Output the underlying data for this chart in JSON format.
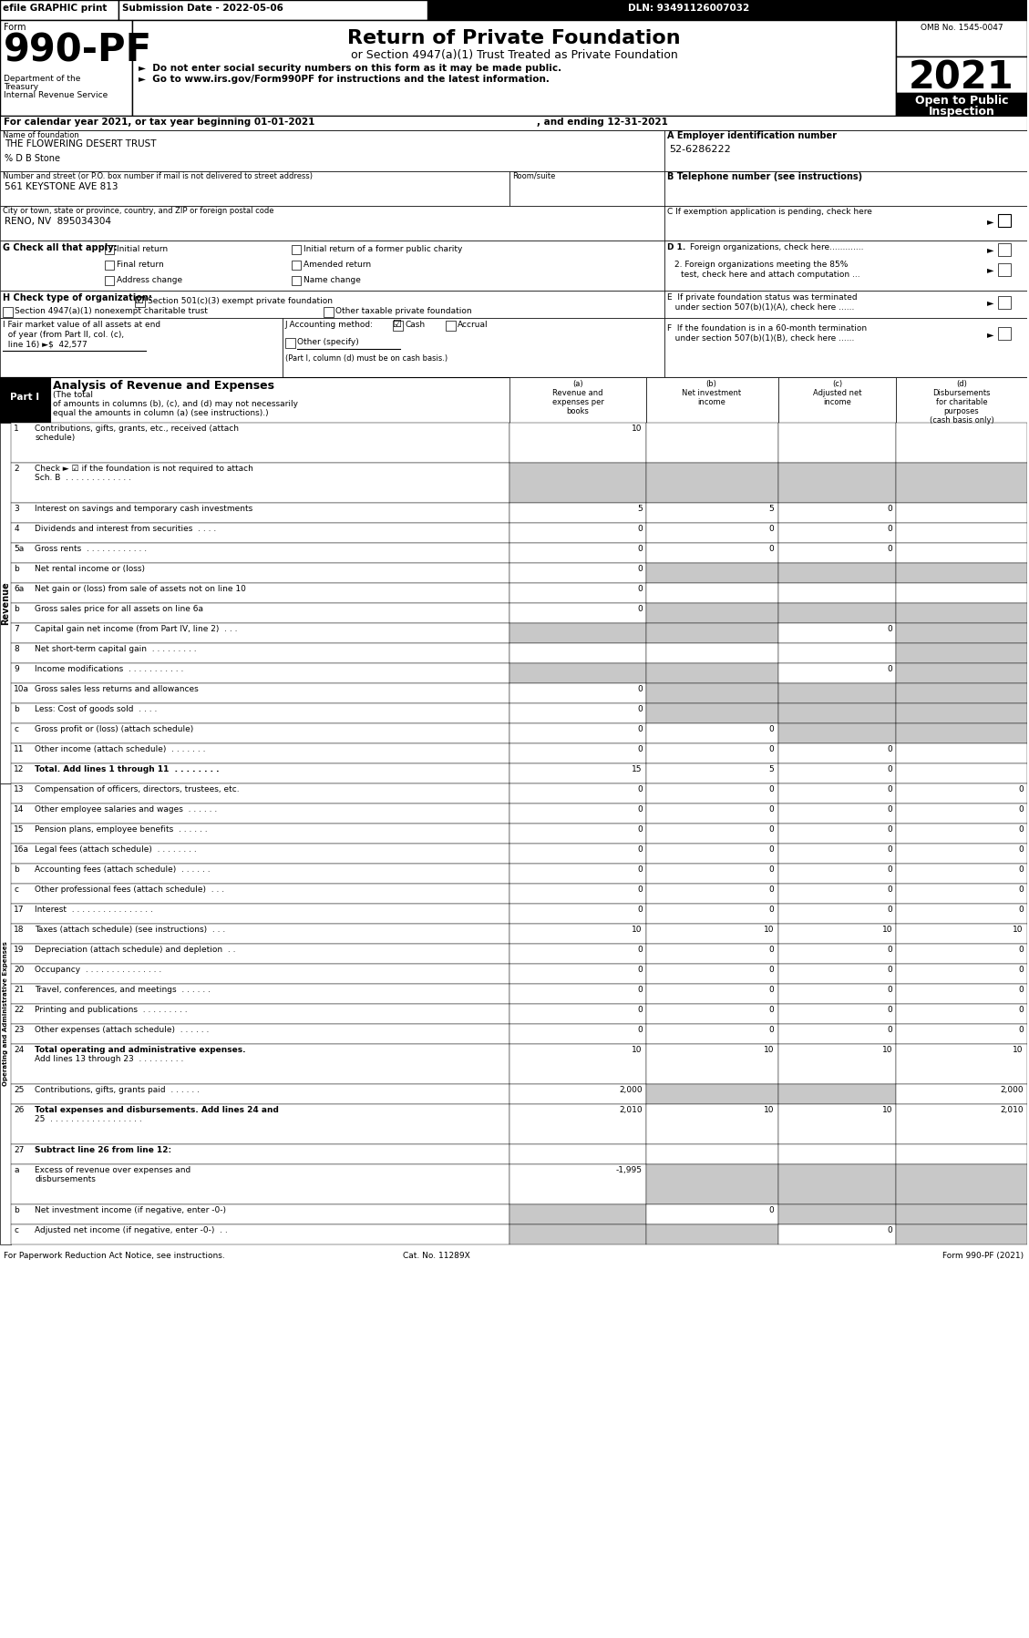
{
  "efile_bar": "efile GRAPHIC print",
  "submission_date": "Submission Date - 2022-05-06",
  "dln": "DLN: 93491126007032",
  "form_label": "Form",
  "form_number": "990-PF",
  "dept1": "Department of the",
  "dept2": "Treasury",
  "dept3": "Internal Revenue Service",
  "title_main": "Return of Private Foundation",
  "title_sub": "or Section 4947(a)(1) Trust Treated as Private Foundation",
  "bullet1": "►  Do not enter social security numbers on this form as it may be made public.",
  "bullet2": "►  Go to www.irs.gov/Form990PF for instructions and the latest information.",
  "omb": "OMB No. 1545-0047",
  "year": "2021",
  "open_public": "Open to Public",
  "inspection": "Inspection",
  "cal_year_line": "For calendar year 2021, or tax year beginning 01-01-2021",
  "and_ending": ", and ending 12-31-2021",
  "name_label": "Name of foundation",
  "name_value": "THE FLOWERING DESERT TRUST",
  "care_of": "% D B Stone",
  "ein_label": "A Employer identification number",
  "ein_value": "52-6286222",
  "address_label": "Number and street (or P.O. box number if mail is not delivered to street address)",
  "room_label": "Room/suite",
  "address_value": "561 KEYSTONE AVE 813",
  "phone_label": "B Telephone number (see instructions)",
  "city_label": "City or town, state or province, country, and ZIP or foreign postal code",
  "city_value": "RENO, NV  895034304",
  "g_label": "G Check all that apply:",
  "g_checks": [
    "Initial return",
    "Initial return of a former public charity",
    "Final return",
    "Amended return",
    "Address change",
    "Name change"
  ],
  "h_label": "H Check type of organization:",
  "h1": "Section 501(c)(3) exempt private foundation",
  "h2": "Section 4947(a)(1) nonexempt charitable trust",
  "h3": "Other taxable private foundation",
  "j_cash": "Cash",
  "j_accrual": "Accrual",
  "j_other": "Other (specify)",
  "j_note": "(Part I, column (d) must be on cash basis.)",
  "part1_label": "Part I",
  "part1_title": "Analysis of Revenue and Expenses",
  "rows": [
    {
      "num": "1",
      "label": "Contributions, gifts, grants, etc., received (attach\nschedule)",
      "a": "10",
      "b": "",
      "c": "",
      "d": "",
      "sa": false,
      "sb": false,
      "sc": false,
      "sd": false
    },
    {
      "num": "2",
      "label": "Check ► ☑ if the foundation is not required to attach\nSch. B  . . . . . . . . . . . . .",
      "a": "",
      "b": "",
      "c": "",
      "d": "",
      "sa": true,
      "sb": true,
      "sc": true,
      "sd": true
    },
    {
      "num": "3",
      "label": "Interest on savings and temporary cash investments",
      "a": "5",
      "b": "5",
      "c": "0",
      "d": "",
      "sa": false,
      "sb": false,
      "sc": false,
      "sd": false
    },
    {
      "num": "4",
      "label": "Dividends and interest from securities  . . . .",
      "a": "0",
      "b": "0",
      "c": "0",
      "d": "",
      "sa": false,
      "sb": false,
      "sc": false,
      "sd": false
    },
    {
      "num": "5a",
      "label": "Gross rents  . . . . . . . . . . . .",
      "a": "0",
      "b": "0",
      "c": "0",
      "d": "",
      "sa": false,
      "sb": false,
      "sc": false,
      "sd": false
    },
    {
      "num": "b",
      "label": "Net rental income or (loss)",
      "a": "0",
      "b": "",
      "c": "",
      "d": "",
      "sa": false,
      "sb": true,
      "sc": true,
      "sd": true
    },
    {
      "num": "6a",
      "label": "Net gain or (loss) from sale of assets not on line 10",
      "a": "0",
      "b": "",
      "c": "",
      "d": "",
      "sa": false,
      "sb": false,
      "sc": false,
      "sd": false
    },
    {
      "num": "b",
      "label": "Gross sales price for all assets on line 6a",
      "a": "0",
      "b": "",
      "c": "",
      "d": "",
      "sa": false,
      "sb": true,
      "sc": true,
      "sd": true
    },
    {
      "num": "7",
      "label": "Capital gain net income (from Part IV, line 2)  . . .",
      "a": "",
      "b": "",
      "c": "0",
      "d": "",
      "sa": true,
      "sb": true,
      "sc": false,
      "sd": true
    },
    {
      "num": "8",
      "label": "Net short-term capital gain  . . . . . . . . .",
      "a": "",
      "b": "",
      "c": "",
      "d": "",
      "sa": false,
      "sb": false,
      "sc": false,
      "sd": true
    },
    {
      "num": "9",
      "label": "Income modifications  . . . . . . . . . . .",
      "a": "",
      "b": "",
      "c": "0",
      "d": "",
      "sa": true,
      "sb": true,
      "sc": false,
      "sd": true
    },
    {
      "num": "10a",
      "label": "Gross sales less returns and allowances",
      "a": "0",
      "b": "",
      "c": "",
      "d": "",
      "sa": false,
      "sb": true,
      "sc": true,
      "sd": true
    },
    {
      "num": "b",
      "label": "Less: Cost of goods sold  . . . .",
      "a": "0",
      "b": "",
      "c": "",
      "d": "",
      "sa": false,
      "sb": true,
      "sc": true,
      "sd": true
    },
    {
      "num": "c",
      "label": "Gross profit or (loss) (attach schedule)",
      "a": "0",
      "b": "0",
      "c": "",
      "d": "",
      "sa": false,
      "sb": false,
      "sc": true,
      "sd": true
    },
    {
      "num": "11",
      "label": "Other income (attach schedule)  . . . . . . .",
      "a": "0",
      "b": "0",
      "c": "0",
      "d": "",
      "sa": false,
      "sb": false,
      "sc": false,
      "sd": false
    },
    {
      "num": "12",
      "label": "Total. Add lines 1 through 11  . . . . . . . .",
      "a": "15",
      "b": "5",
      "c": "0",
      "d": "",
      "sa": false,
      "sb": false,
      "sc": false,
      "sd": false,
      "bold": true
    },
    {
      "num": "13",
      "label": "Compensation of officers, directors, trustees, etc.",
      "a": "0",
      "b": "0",
      "c": "0",
      "d": "0",
      "sa": false,
      "sb": false,
      "sc": false,
      "sd": false
    },
    {
      "num": "14",
      "label": "Other employee salaries and wages  . . . . . .",
      "a": "0",
      "b": "0",
      "c": "0",
      "d": "0",
      "sa": false,
      "sb": false,
      "sc": false,
      "sd": false
    },
    {
      "num": "15",
      "label": "Pension plans, employee benefits  . . . . . .",
      "a": "0",
      "b": "0",
      "c": "0",
      "d": "0",
      "sa": false,
      "sb": false,
      "sc": false,
      "sd": false
    },
    {
      "num": "16a",
      "label": "Legal fees (attach schedule)  . . . . . . . .",
      "a": "0",
      "b": "0",
      "c": "0",
      "d": "0",
      "sa": false,
      "sb": false,
      "sc": false,
      "sd": false
    },
    {
      "num": "b",
      "label": "Accounting fees (attach schedule)  . . . . . .",
      "a": "0",
      "b": "0",
      "c": "0",
      "d": "0",
      "sa": false,
      "sb": false,
      "sc": false,
      "sd": false
    },
    {
      "num": "c",
      "label": "Other professional fees (attach schedule)  . . .",
      "a": "0",
      "b": "0",
      "c": "0",
      "d": "0",
      "sa": false,
      "sb": false,
      "sc": false,
      "sd": false
    },
    {
      "num": "17",
      "label": "Interest  . . . . . . . . . . . . . . . .",
      "a": "0",
      "b": "0",
      "c": "0",
      "d": "0",
      "sa": false,
      "sb": false,
      "sc": false,
      "sd": false
    },
    {
      "num": "18",
      "label": "Taxes (attach schedule) (see instructions)  . . .",
      "a": "10",
      "b": "10",
      "c": "10",
      "d": "10",
      "sa": false,
      "sb": false,
      "sc": false,
      "sd": false
    },
    {
      "num": "19",
      "label": "Depreciation (attach schedule) and depletion  . .",
      "a": "0",
      "b": "0",
      "c": "0",
      "d": "0",
      "sa": false,
      "sb": false,
      "sc": false,
      "sd": false
    },
    {
      "num": "20",
      "label": "Occupancy  . . . . . . . . . . . . . . .",
      "a": "0",
      "b": "0",
      "c": "0",
      "d": "0",
      "sa": false,
      "sb": false,
      "sc": false,
      "sd": false
    },
    {
      "num": "21",
      "label": "Travel, conferences, and meetings  . . . . . .",
      "a": "0",
      "b": "0",
      "c": "0",
      "d": "0",
      "sa": false,
      "sb": false,
      "sc": false,
      "sd": false
    },
    {
      "num": "22",
      "label": "Printing and publications  . . . . . . . . .",
      "a": "0",
      "b": "0",
      "c": "0",
      "d": "0",
      "sa": false,
      "sb": false,
      "sc": false,
      "sd": false
    },
    {
      "num": "23",
      "label": "Other expenses (attach schedule)  . . . . . .",
      "a": "0",
      "b": "0",
      "c": "0",
      "d": "0",
      "sa": false,
      "sb": false,
      "sc": false,
      "sd": false
    },
    {
      "num": "24",
      "label": "Total operating and administrative expenses.\nAdd lines 13 through 23  . . . . . . . . .",
      "a": "10",
      "b": "10",
      "c": "10",
      "d": "10",
      "sa": false,
      "sb": false,
      "sc": false,
      "sd": false,
      "bold": true
    },
    {
      "num": "25",
      "label": "Contributions, gifts, grants paid  . . . . . .",
      "a": "2,000",
      "b": "",
      "c": "",
      "d": "2,000",
      "sa": false,
      "sb": true,
      "sc": true,
      "sd": false
    },
    {
      "num": "26",
      "label": "Total expenses and disbursements. Add lines 24 and\n25  . . . . . . . . . . . . . . . . . .",
      "a": "2,010",
      "b": "10",
      "c": "10",
      "d": "2,010",
      "sa": false,
      "sb": false,
      "sc": false,
      "sd": false,
      "bold": true
    },
    {
      "num": "27",
      "label": "Subtract line 26 from line 12:",
      "a": "",
      "b": "",
      "c": "",
      "d": "",
      "sa": false,
      "sb": false,
      "sc": false,
      "sd": false,
      "bold": true,
      "header_only": true
    },
    {
      "num": "a",
      "label": "Excess of revenue over expenses and\ndisbursements",
      "a": "-1,995",
      "b": "",
      "c": "",
      "d": "",
      "sa": false,
      "sb": true,
      "sc": true,
      "sd": true
    },
    {
      "num": "b",
      "label": "Net investment income (if negative, enter -0-)",
      "a": "",
      "b": "0",
      "c": "",
      "d": "",
      "sa": true,
      "sb": false,
      "sc": true,
      "sd": true
    },
    {
      "num": "c",
      "label": "Adjusted net income (if negative, enter -0-)  . .",
      "a": "",
      "b": "",
      "c": "0",
      "d": "",
      "sa": true,
      "sb": true,
      "sc": false,
      "sd": true
    }
  ],
  "revenue_label": "Revenue",
  "expenses_label": "Operating and Administrative Expenses",
  "footer_left": "For Paperwork Reduction Act Notice, see instructions.",
  "footer_cat": "Cat. No. 11289X",
  "footer_right": "Form 990-PF (2021)"
}
